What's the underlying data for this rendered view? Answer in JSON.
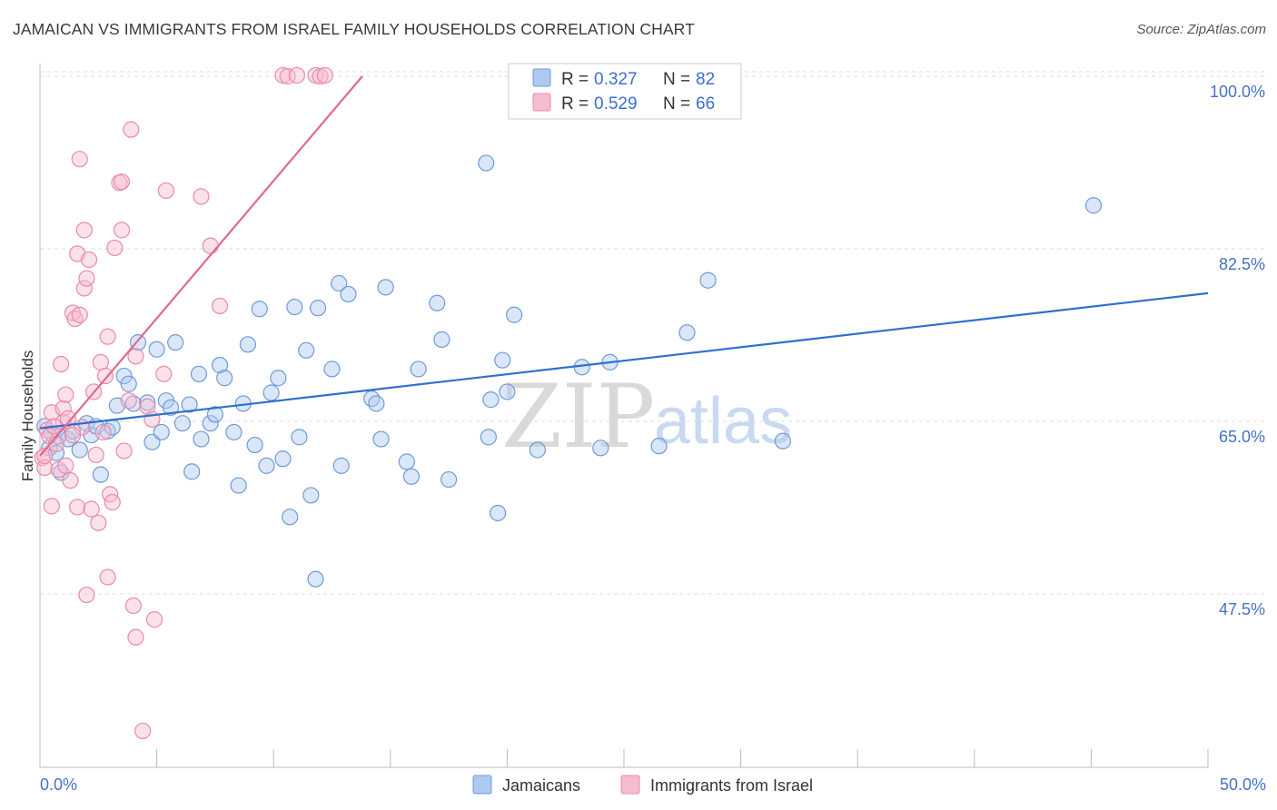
{
  "title": "JAMAICAN VS IMMIGRANTS FROM ISRAEL FAMILY HOUSEHOLDS CORRELATION CHART",
  "source": "Source: ZipAtlas.com",
  "watermark": {
    "zip": "ZIP",
    "atlas": "atlas"
  },
  "colors": {
    "blue_fill": "#aec9f0",
    "blue_stroke": "#6f9ad8",
    "blue_line": "#2f6fd0",
    "pink_fill": "#f6bcd0",
    "pink_stroke": "#e98aab",
    "pink_line": "#e0698f",
    "grid": "#dddddd",
    "axis_text": "#4472c4"
  },
  "legend": {
    "series1": {
      "r_label": "R =",
      "r_value": "0.327",
      "n_label": "N =",
      "n_value": "82"
    },
    "series2": {
      "r_label": "R =",
      "r_value": "0.529",
      "n_label": "N =",
      "n_value": "66"
    }
  },
  "chart_data": {
    "type": "scatter",
    "title": "JAMAICAN VS IMMIGRANTS FROM ISRAEL FAMILY HOUSEHOLDS CORRELATION CHART",
    "xlabel": "",
    "ylabel": "Family Households",
    "xlim": [
      0,
      50
    ],
    "ylim": [
      32,
      102
    ],
    "x_tick_labels": [
      "0.0%",
      "50.0%"
    ],
    "y_ticks": [
      47.5,
      65.0,
      82.5,
      100.0
    ],
    "y_tick_labels": [
      "47.5%",
      "65.0%",
      "82.5%",
      "100.0%"
    ],
    "grid": true,
    "legend_position": "top-center",
    "series": [
      {
        "name": "Jamaicans",
        "color": "#6f9ad8",
        "trend": {
          "x": [
            0,
            50
          ],
          "y": [
            64.3,
            78.0
          ]
        },
        "points": [
          [
            0.2,
            64.5
          ],
          [
            0.4,
            62.3
          ],
          [
            0.5,
            63.8
          ],
          [
            0.7,
            61.8
          ],
          [
            0.8,
            63.5
          ],
          [
            0.9,
            59.8
          ],
          [
            1.2,
            63.2
          ],
          [
            1.4,
            64.0
          ],
          [
            1.7,
            62.1
          ],
          [
            2.0,
            64.8
          ],
          [
            2.2,
            63.6
          ],
          [
            2.4,
            64.5
          ],
          [
            2.6,
            59.6
          ],
          [
            2.9,
            64.0
          ],
          [
            3.1,
            64.4
          ],
          [
            3.3,
            66.6
          ],
          [
            3.6,
            69.6
          ],
          [
            3.8,
            68.8
          ],
          [
            4.0,
            66.8
          ],
          [
            4.2,
            73.0
          ],
          [
            4.6,
            66.9
          ],
          [
            4.8,
            62.9
          ],
          [
            5.0,
            72.3
          ],
          [
            5.2,
            63.9
          ],
          [
            5.4,
            67.1
          ],
          [
            5.6,
            66.4
          ],
          [
            5.8,
            73.0
          ],
          [
            6.1,
            64.8
          ],
          [
            6.4,
            66.7
          ],
          [
            6.5,
            59.9
          ],
          [
            6.8,
            69.8
          ],
          [
            6.9,
            63.2
          ],
          [
            7.3,
            64.8
          ],
          [
            7.5,
            65.7
          ],
          [
            7.7,
            70.7
          ],
          [
            7.9,
            69.4
          ],
          [
            8.3,
            63.9
          ],
          [
            8.5,
            58.5
          ],
          [
            8.7,
            66.8
          ],
          [
            8.9,
            72.8
          ],
          [
            9.2,
            62.6
          ],
          [
            9.4,
            76.4
          ],
          [
            9.7,
            60.5
          ],
          [
            9.9,
            67.9
          ],
          [
            10.2,
            69.4
          ],
          [
            10.4,
            61.2
          ],
          [
            10.7,
            55.3
          ],
          [
            10.9,
            76.6
          ],
          [
            11.1,
            63.4
          ],
          [
            11.4,
            72.2
          ],
          [
            11.6,
            57.5
          ],
          [
            11.8,
            49.0
          ],
          [
            11.9,
            76.5
          ],
          [
            12.5,
            70.3
          ],
          [
            12.8,
            79.0
          ],
          [
            12.9,
            60.5
          ],
          [
            13.2,
            77.9
          ],
          [
            14.2,
            67.3
          ],
          [
            14.4,
            66.8
          ],
          [
            14.6,
            63.2
          ],
          [
            14.8,
            78.6
          ],
          [
            15.7,
            60.9
          ],
          [
            15.9,
            59.4
          ],
          [
            16.2,
            70.3
          ],
          [
            17.0,
            77.0
          ],
          [
            17.2,
            73.3
          ],
          [
            17.5,
            59.1
          ],
          [
            19.1,
            91.2
          ],
          [
            19.2,
            63.4
          ],
          [
            19.3,
            67.2
          ],
          [
            19.6,
            55.7
          ],
          [
            19.8,
            71.2
          ],
          [
            20.0,
            68.0
          ],
          [
            20.3,
            75.8
          ],
          [
            21.3,
            62.1
          ],
          [
            23.2,
            70.5
          ],
          [
            24.0,
            62.3
          ],
          [
            24.4,
            71.0
          ],
          [
            26.5,
            62.5
          ],
          [
            27.7,
            74.0
          ],
          [
            28.6,
            79.3
          ],
          [
            31.8,
            63.0
          ],
          [
            45.1,
            86.9
          ]
        ]
      },
      {
        "name": "Immigrants from Israel",
        "color": "#e98aab",
        "trend": {
          "x": [
            0,
            13.8
          ],
          "y": [
            61.5,
            100.0
          ]
        },
        "points": [
          [
            0.1,
            61.3
          ],
          [
            0.2,
            60.3
          ],
          [
            0.3,
            64.1
          ],
          [
            0.4,
            63.5
          ],
          [
            0.5,
            65.9
          ],
          [
            0.5,
            56.4
          ],
          [
            0.7,
            62.7
          ],
          [
            0.8,
            60.1
          ],
          [
            0.9,
            70.8
          ],
          [
            1.0,
            66.3
          ],
          [
            1.0,
            64.9
          ],
          [
            1.1,
            67.7
          ],
          [
            1.1,
            60.5
          ],
          [
            1.2,
            65.3
          ],
          [
            1.3,
            59.0
          ],
          [
            1.4,
            76.0
          ],
          [
            1.5,
            75.4
          ],
          [
            1.6,
            82.0
          ],
          [
            1.6,
            56.3
          ],
          [
            1.7,
            75.8
          ],
          [
            1.8,
            64.4
          ],
          [
            1.7,
            91.6
          ],
          [
            1.9,
            78.5
          ],
          [
            1.9,
            84.4
          ],
          [
            2.0,
            47.4
          ],
          [
            2.0,
            79.5
          ],
          [
            2.1,
            81.4
          ],
          [
            2.2,
            56.1
          ],
          [
            2.3,
            68.0
          ],
          [
            2.4,
            61.6
          ],
          [
            2.5,
            54.7
          ],
          [
            2.6,
            71.0
          ],
          [
            2.8,
            69.6
          ],
          [
            2.9,
            73.6
          ],
          [
            2.9,
            49.2
          ],
          [
            3.0,
            57.6
          ],
          [
            3.1,
            56.8
          ],
          [
            3.2,
            82.6
          ],
          [
            3.4,
            89.2
          ],
          [
            3.5,
            84.4
          ],
          [
            3.5,
            89.3
          ],
          [
            3.6,
            62.0
          ],
          [
            3.8,
            67.1
          ],
          [
            3.9,
            94.6
          ],
          [
            4.0,
            46.3
          ],
          [
            4.1,
            43.1
          ],
          [
            4.1,
            71.6
          ],
          [
            4.4,
            33.6
          ],
          [
            4.6,
            66.5
          ],
          [
            4.8,
            65.2
          ],
          [
            4.9,
            44.9
          ],
          [
            5.3,
            69.8
          ],
          [
            5.4,
            88.4
          ],
          [
            6.9,
            87.8
          ],
          [
            7.3,
            82.8
          ],
          [
            7.7,
            76.7
          ],
          [
            10.4,
            100.1
          ],
          [
            10.6,
            100.0
          ],
          [
            11.0,
            100.1
          ],
          [
            11.8,
            100.1
          ],
          [
            12.0,
            100.0
          ],
          [
            12.2,
            100.1
          ],
          [
            0.2,
            61.5
          ],
          [
            0.6,
            64.5
          ],
          [
            1.4,
            63.6
          ],
          [
            2.7,
            63.9
          ]
        ]
      }
    ]
  },
  "bottom_legend": {
    "series1": "Jamaicans",
    "series2": "Immigrants from Israel"
  }
}
